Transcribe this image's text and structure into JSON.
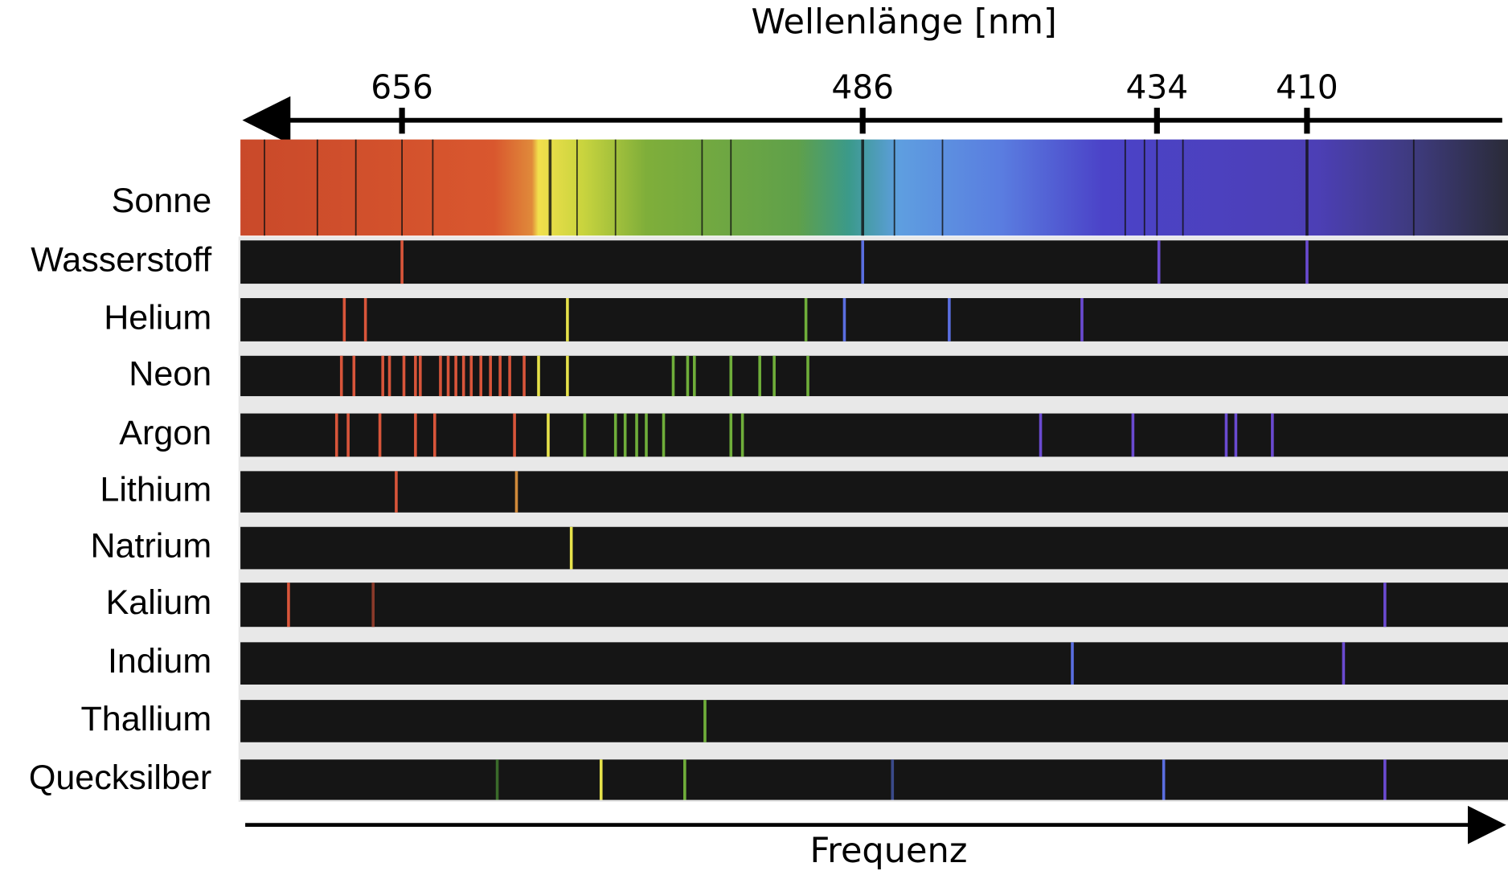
{
  "axis_title": "Wellenlänge [nm]",
  "wavelength_ticks": [
    "656",
    "486",
    "434",
    "410"
  ],
  "rows": [
    "Sonne",
    "Wasserstoff",
    "Helium",
    "Neon",
    "Argon",
    "Lithium",
    "Natrium",
    "Kalium",
    "Indium",
    "Thallium",
    "Quecksilber"
  ],
  "bottom_label": "Frequenz"
}
